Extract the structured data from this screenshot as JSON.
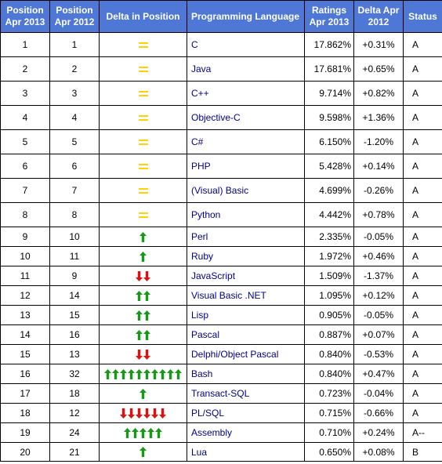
{
  "headers": {
    "pos2013": "Position Apr 2013",
    "pos2012": "Position Apr 2012",
    "delta_pos": "Delta in Position",
    "language": "Programming Language",
    "rating": "Ratings Apr 2013",
    "delta": "Delta Apr 2012",
    "status": "Status"
  },
  "colors": {
    "header_bg": "#4f77d6",
    "up": "#179917",
    "down": "#e01010",
    "equal": "#ffd200",
    "link": "#00008b"
  },
  "rows": [
    {
      "pos2013": "1",
      "pos2012": "1",
      "dir": "equal",
      "count": 1,
      "language": "C",
      "rating": "17.862%",
      "delta": "+0.31%",
      "status": "A"
    },
    {
      "pos2013": "2",
      "pos2012": "2",
      "dir": "equal",
      "count": 1,
      "language": "Java",
      "rating": "17.681%",
      "delta": "+0.65%",
      "status": "A"
    },
    {
      "pos2013": "3",
      "pos2012": "3",
      "dir": "equal",
      "count": 1,
      "language": "C++",
      "rating": "9.714%",
      "delta": "+0.82%",
      "status": "A"
    },
    {
      "pos2013": "4",
      "pos2012": "4",
      "dir": "equal",
      "count": 1,
      "language": "Objective-C",
      "rating": "9.598%",
      "delta": "+1.36%",
      "status": "A"
    },
    {
      "pos2013": "5",
      "pos2012": "5",
      "dir": "equal",
      "count": 1,
      "language": "C#",
      "rating": "6.150%",
      "delta": "-1.20%",
      "status": "A"
    },
    {
      "pos2013": "6",
      "pos2012": "6",
      "dir": "equal",
      "count": 1,
      "language": "PHP",
      "rating": "5.428%",
      "delta": "+0.14%",
      "status": "A"
    },
    {
      "pos2013": "7",
      "pos2012": "7",
      "dir": "equal",
      "count": 1,
      "language": "(Visual) Basic",
      "rating": "4.699%",
      "delta": "-0.26%",
      "status": "A"
    },
    {
      "pos2013": "8",
      "pos2012": "8",
      "dir": "equal",
      "count": 1,
      "language": "Python",
      "rating": "4.442%",
      "delta": "+0.78%",
      "status": "A"
    },
    {
      "pos2013": "9",
      "pos2012": "10",
      "dir": "up",
      "count": 1,
      "language": "Perl",
      "rating": "2.335%",
      "delta": "-0.05%",
      "status": "A"
    },
    {
      "pos2013": "10",
      "pos2012": "11",
      "dir": "up",
      "count": 1,
      "language": "Ruby",
      "rating": "1.972%",
      "delta": "+0.46%",
      "status": "A"
    },
    {
      "pos2013": "11",
      "pos2012": "9",
      "dir": "down",
      "count": 2,
      "language": "JavaScript",
      "rating": "1.509%",
      "delta": "-1.37%",
      "status": "A"
    },
    {
      "pos2013": "12",
      "pos2012": "14",
      "dir": "up",
      "count": 2,
      "language": "Visual Basic .NET",
      "rating": "1.095%",
      "delta": "+0.12%",
      "status": "A"
    },
    {
      "pos2013": "13",
      "pos2012": "15",
      "dir": "up",
      "count": 2,
      "language": "Lisp",
      "rating": "0.905%",
      "delta": "-0.05%",
      "status": "A"
    },
    {
      "pos2013": "14",
      "pos2012": "16",
      "dir": "up",
      "count": 2,
      "language": "Pascal",
      "rating": "0.887%",
      "delta": "+0.07%",
      "status": "A"
    },
    {
      "pos2013": "15",
      "pos2012": "13",
      "dir": "down",
      "count": 2,
      "language": "Delphi/Object Pascal",
      "rating": "0.840%",
      "delta": "-0.53%",
      "status": "A"
    },
    {
      "pos2013": "16",
      "pos2012": "32",
      "dir": "up",
      "count": 10,
      "language": "Bash",
      "rating": "0.840%",
      "delta": "+0.47%",
      "status": "A"
    },
    {
      "pos2013": "17",
      "pos2012": "18",
      "dir": "up",
      "count": 1,
      "language": "Transact-SQL",
      "rating": "0.723%",
      "delta": "-0.04%",
      "status": "A"
    },
    {
      "pos2013": "18",
      "pos2012": "12",
      "dir": "down",
      "count": 6,
      "language": "PL/SQL",
      "rating": "0.715%",
      "delta": "-0.66%",
      "status": "A"
    },
    {
      "pos2013": "19",
      "pos2012": "24",
      "dir": "up",
      "count": 5,
      "language": "Assembly",
      "rating": "0.710%",
      "delta": "+0.24%",
      "status": "A--"
    },
    {
      "pos2013": "20",
      "pos2012": "21",
      "dir": "up",
      "count": 1,
      "language": "Lua",
      "rating": "0.650%",
      "delta": "+0.08%",
      "status": "B"
    }
  ]
}
